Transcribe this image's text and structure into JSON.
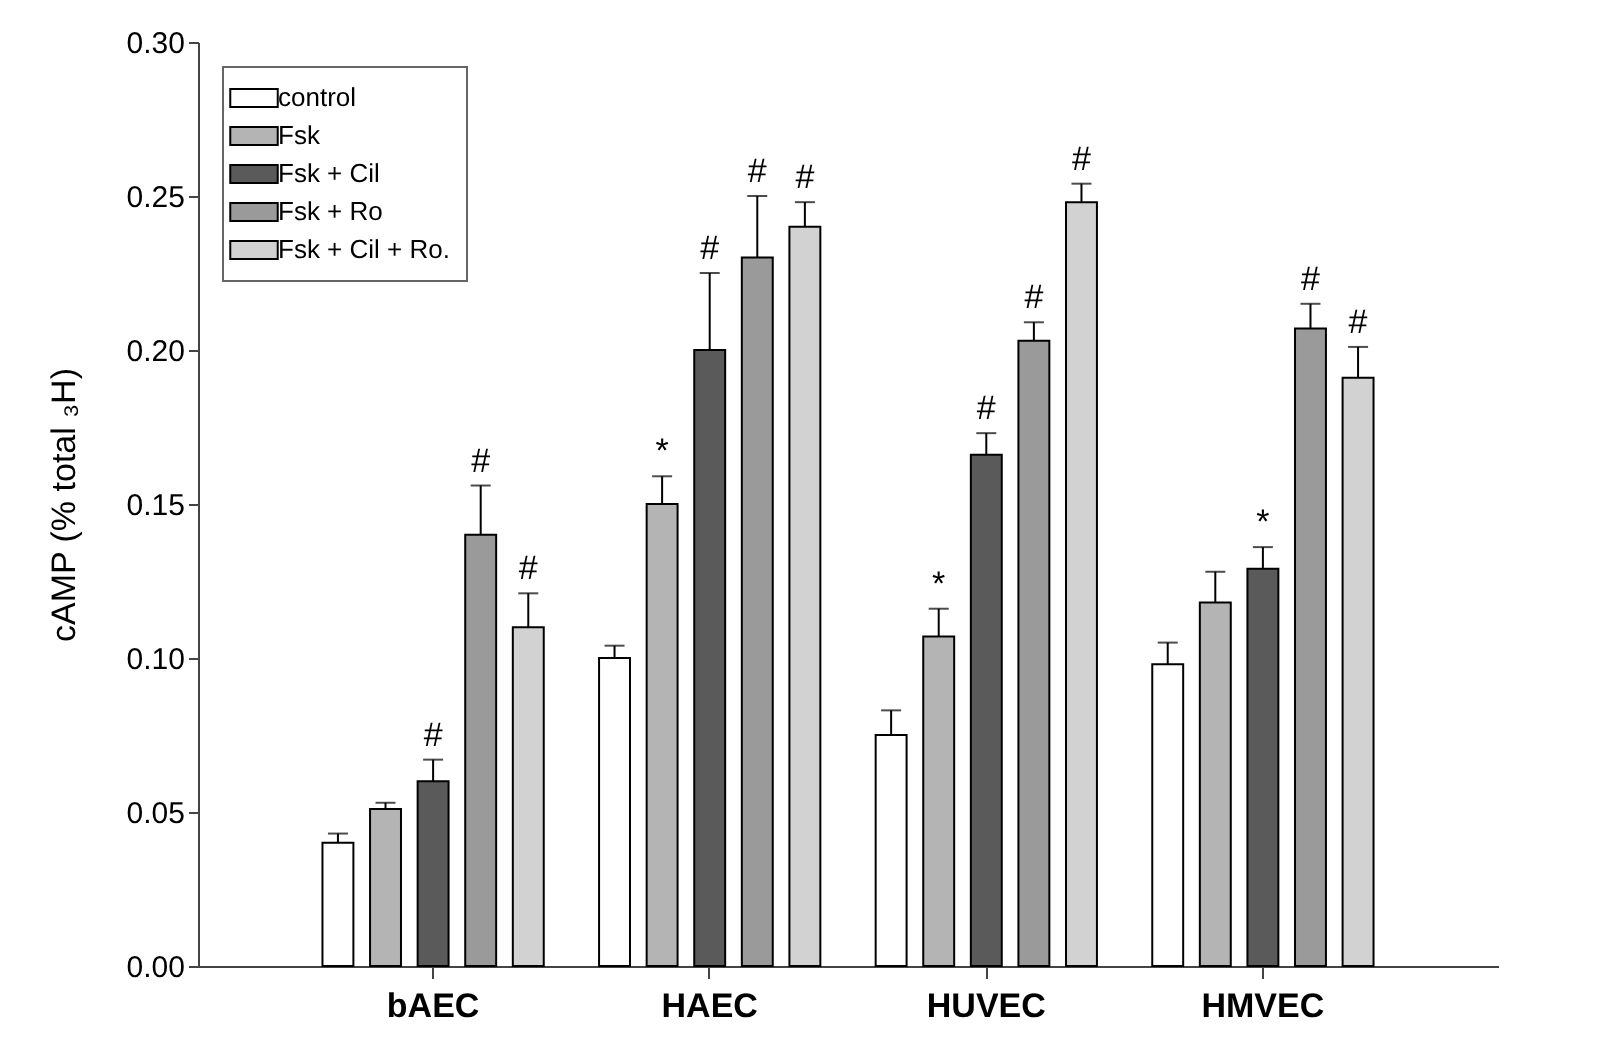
{
  "chart_data": {
    "type": "bar",
    "ylabel": "cAMP (% total ₃H)",
    "categories": [
      "bAEC",
      "HAEC",
      "HUVEC",
      "HMVEC"
    ],
    "series": [
      {
        "name": "control",
        "color": "#ffffff",
        "values": [
          0.04,
          0.1,
          0.075,
          0.098
        ],
        "errors": [
          [
            0.04,
            0.043
          ],
          [
            0.1,
            0.104
          ],
          [
            0.075,
            0.083
          ],
          [
            0.098,
            0.105
          ]
        ]
      },
      {
        "name": "Fsk",
        "color": "#b4b4b4",
        "values": [
          0.051,
          0.15,
          0.107,
          0.118
        ],
        "errors": [
          [
            0.051,
            0.053
          ],
          [
            0.15,
            0.159
          ],
          [
            0.107,
            0.116
          ],
          [
            0.118,
            0.128
          ]
        ],
        "value_labels": [
          null,
          "*",
          "*",
          null
        ]
      },
      {
        "name": "Fsk + Cil",
        "color": "#5a5a5a",
        "values": [
          0.06,
          0.2,
          0.166,
          0.129
        ],
        "errors": [
          [
            0.06,
            0.067
          ],
          [
            0.2,
            0.225
          ],
          [
            0.166,
            0.173
          ],
          [
            0.129,
            0.136
          ]
        ],
        "value_labels": [
          "#",
          "#",
          "#",
          "*"
        ]
      },
      {
        "name": "Fsk + Ro",
        "color": "#9a9a9a",
        "values": [
          0.14,
          0.23,
          0.203,
          0.207
        ],
        "errors": [
          [
            0.14,
            0.156
          ],
          [
            0.23,
            0.25
          ],
          [
            0.203,
            0.209
          ],
          [
            0.207,
            0.215
          ]
        ],
        "value_labels": [
          "#",
          "#",
          "#",
          "#"
        ]
      },
      {
        "name": "Fsk + Cil + Ro.",
        "color": "#d2d2d2",
        "values": [
          0.11,
          0.24,
          0.248,
          0.191
        ],
        "errors": [
          [
            0.11,
            0.121
          ],
          [
            0.24,
            0.248
          ],
          [
            0.248,
            0.254
          ],
          [
            0.191,
            0.201
          ]
        ],
        "value_labels": [
          "#",
          "#",
          "#",
          "#"
        ]
      }
    ],
    "ylim": [
      0,
      0.3
    ],
    "yticks": [
      {
        "value": 0,
        "label": "0.00"
      },
      {
        "value": 0.05,
        "label": "0.05"
      },
      {
        "value": 0.1,
        "label": "0.10"
      },
      {
        "value": 0.15,
        "label": "0.15"
      },
      {
        "value": 0.2,
        "label": "0.20"
      },
      {
        "value": 0.25,
        "label": "0.25"
      },
      {
        "value": 0.3,
        "label": "0.30"
      }
    ],
    "legend": "top left"
  }
}
